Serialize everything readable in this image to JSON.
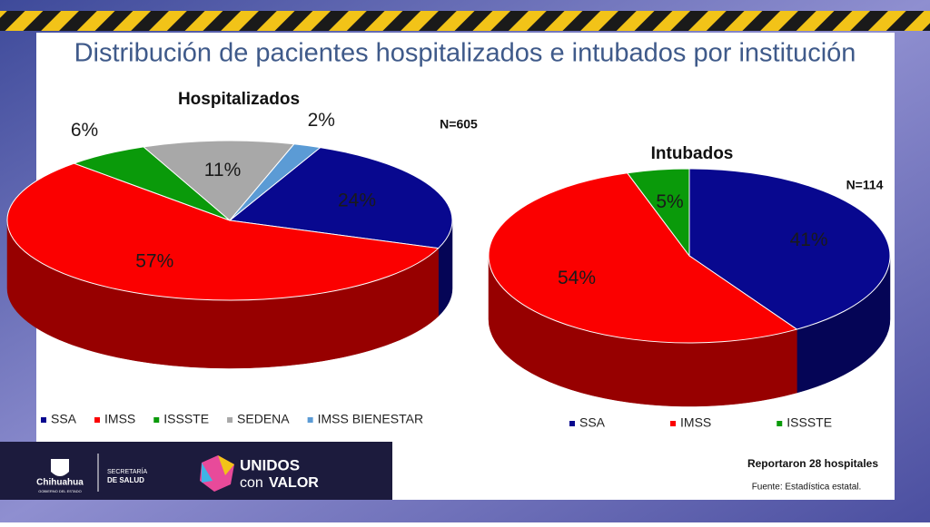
{
  "title": "Distribución de pacientes hospitalizados e intubados por institución",
  "chart_data": [
    {
      "type": "pie",
      "title": "Hospitalizados",
      "annotation": "N=605",
      "categories": [
        "SSA",
        "IMSS",
        "ISSSTE",
        "SEDENA",
        "IMSS BIENESTAR"
      ],
      "values": [
        24,
        57,
        6,
        11,
        2
      ],
      "value_labels": [
        "24%",
        "57%",
        "6%",
        "11%",
        "2%"
      ],
      "colors": [
        "#08088f",
        "#fb0000",
        "#0a9a0a",
        "#a8a8a8",
        "#5b9bd5"
      ]
    },
    {
      "type": "pie",
      "title": "Intubados",
      "annotation": "N=114",
      "categories": [
        "SSA",
        "IMSS",
        "ISSSTE"
      ],
      "values": [
        41,
        54,
        5
      ],
      "value_labels": [
        "41%",
        "54%",
        "5%"
      ],
      "colors": [
        "#08088f",
        "#fb0000",
        "#0a9a0a"
      ]
    }
  ],
  "footer": {
    "note": "Reportaron 28 hospitales",
    "source": "Fuente: Estadística estatal.",
    "state": "Chihuahua",
    "state_sub": "GOBIERNO DEL ESTADO",
    "dept_line1": "SECRETARÍA",
    "dept_line2": "DE SALUD",
    "campaign_line1": "UNIDOS",
    "campaign_con": "con",
    "campaign_valor": "VALOR"
  }
}
